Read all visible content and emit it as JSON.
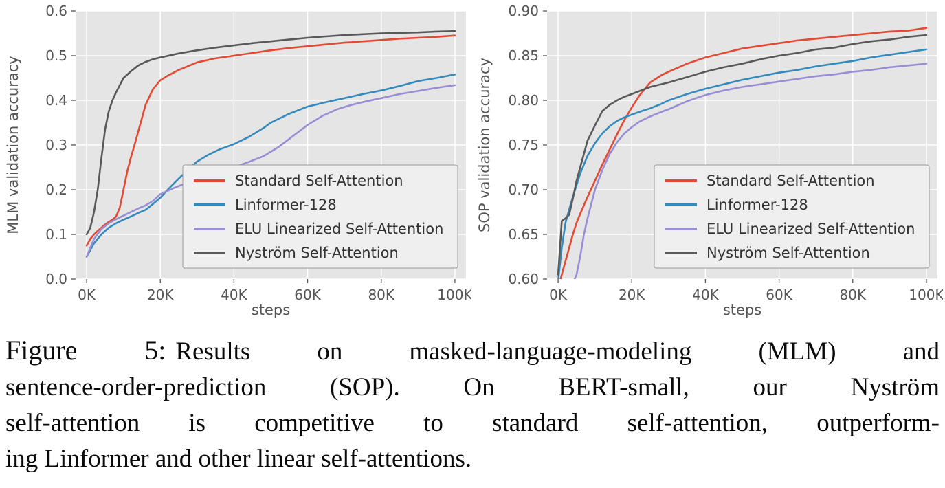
{
  "caption": {
    "label": "Figure 5:",
    "lines": [
      "Results on masked-language-modeling (MLM) and",
      "sentence-order-prediction (SOP). On BERT-small, our Nyström",
      "self-attention is competitive to standard self-attention, outperform-",
      "ing Linformer and other linear self-attentions."
    ]
  },
  "styles": {
    "plot_bg": "#e5e5e5",
    "grid_color": "#ffffff",
    "tick_color": "#555555",
    "legend_bg": "#efefef",
    "legend_border": "#999999"
  },
  "chart_data": [
    {
      "type": "line",
      "title": "",
      "xlabel": "steps",
      "ylabel": "MLM validation accuracy",
      "x_unit": "K",
      "xlim": [
        -3,
        103
      ],
      "ylim": [
        0.0,
        0.6
      ],
      "grid": true,
      "legend_position": "lower right",
      "xticks": {
        "values": [
          0,
          20,
          40,
          60,
          80,
          100
        ],
        "labels": [
          "0K",
          "20K",
          "40K",
          "60K",
          "80K",
          "100K"
        ]
      },
      "yticks": {
        "values": [
          0.0,
          0.1,
          0.2,
          0.3,
          0.4,
          0.5,
          0.6
        ],
        "labels": [
          "0.0",
          "0.1",
          "0.2",
          "0.3",
          "0.4",
          "0.5",
          "0.6"
        ]
      },
      "series": [
        {
          "name": "Standard Self-Attention",
          "color": "#E24A33",
          "x": [
            0,
            1,
            2,
            3,
            4,
            5,
            6,
            7,
            8,
            9,
            10,
            11,
            12,
            13,
            14,
            15,
            16,
            18,
            20,
            22,
            25,
            30,
            35,
            40,
            45,
            50,
            55,
            60,
            65,
            70,
            75,
            80,
            85,
            90,
            95,
            100
          ],
          "y": [
            0.075,
            0.09,
            0.1,
            0.108,
            0.115,
            0.122,
            0.128,
            0.133,
            0.14,
            0.16,
            0.2,
            0.24,
            0.272,
            0.3,
            0.33,
            0.36,
            0.39,
            0.425,
            0.445,
            0.455,
            0.468,
            0.485,
            0.494,
            0.5,
            0.506,
            0.512,
            0.517,
            0.521,
            0.525,
            0.529,
            0.532,
            0.535,
            0.538,
            0.54,
            0.542,
            0.545
          ]
        },
        {
          "name": "Linformer-128",
          "color": "#348ABD",
          "x": [
            0,
            2,
            4,
            6,
            8,
            10,
            12,
            14,
            16,
            18,
            20,
            22,
            25,
            28,
            30,
            33,
            36,
            40,
            44,
            48,
            50,
            55,
            60,
            65,
            70,
            75,
            80,
            85,
            90,
            95,
            100
          ],
          "y": [
            0.05,
            0.08,
            0.1,
            0.115,
            0.125,
            0.133,
            0.14,
            0.148,
            0.155,
            0.168,
            0.182,
            0.2,
            0.225,
            0.248,
            0.263,
            0.278,
            0.29,
            0.302,
            0.318,
            0.338,
            0.35,
            0.37,
            0.386,
            0.396,
            0.405,
            0.414,
            0.422,
            0.432,
            0.443,
            0.45,
            0.458
          ]
        },
        {
          "name": "ELU Linearized Self-Attention",
          "color": "#988ED5",
          "x": [
            0,
            2,
            4,
            6,
            8,
            10,
            12,
            14,
            16,
            18,
            20,
            24,
            28,
            32,
            36,
            40,
            44,
            48,
            52,
            56,
            60,
            64,
            68,
            72,
            76,
            80,
            85,
            90,
            95,
            100
          ],
          "y": [
            0.05,
            0.09,
            0.112,
            0.125,
            0.134,
            0.142,
            0.15,
            0.158,
            0.165,
            0.175,
            0.19,
            0.205,
            0.218,
            0.23,
            0.24,
            0.25,
            0.262,
            0.275,
            0.295,
            0.32,
            0.345,
            0.365,
            0.38,
            0.39,
            0.398,
            0.405,
            0.414,
            0.421,
            0.428,
            0.434
          ]
        },
        {
          "name": "Nyström Self-Attention",
          "color": "#595959",
          "x": [
            0,
            1,
            2,
            3,
            4,
            5,
            6,
            7,
            8,
            10,
            12,
            14,
            16,
            18,
            20,
            25,
            30,
            35,
            40,
            45,
            50,
            55,
            60,
            65,
            70,
            75,
            80,
            85,
            90,
            95,
            100
          ],
          "y": [
            0.1,
            0.115,
            0.15,
            0.2,
            0.27,
            0.335,
            0.375,
            0.4,
            0.418,
            0.45,
            0.465,
            0.478,
            0.486,
            0.492,
            0.496,
            0.505,
            0.512,
            0.518,
            0.523,
            0.528,
            0.532,
            0.536,
            0.54,
            0.543,
            0.546,
            0.548,
            0.55,
            0.551,
            0.552,
            0.554,
            0.555
          ]
        }
      ]
    },
    {
      "type": "line",
      "title": "",
      "xlabel": "steps",
      "ylabel": "SOP validation accuracy",
      "x_unit": "K",
      "xlim": [
        -3,
        103
      ],
      "ylim": [
        0.6,
        0.9
      ],
      "grid": true,
      "legend_position": "lower right",
      "xticks": {
        "values": [
          0,
          20,
          40,
          60,
          80,
          100
        ],
        "labels": [
          "0K",
          "20K",
          "40K",
          "60K",
          "80K",
          "100K"
        ]
      },
      "yticks": {
        "values": [
          0.6,
          0.65,
          0.7,
          0.75,
          0.8,
          0.85,
          0.9
        ],
        "labels": [
          "0.60",
          "0.65",
          "0.70",
          "0.75",
          "0.80",
          "0.85",
          "0.90"
        ]
      },
      "series": [
        {
          "name": "Standard Self-Attention",
          "color": "#E24A33",
          "x": [
            0,
            1,
            2,
            3,
            4,
            5,
            6,
            8,
            10,
            12,
            14,
            16,
            18,
            20,
            22,
            25,
            28,
            30,
            35,
            40,
            45,
            50,
            55,
            60,
            65,
            70,
            75,
            80,
            85,
            90,
            95,
            100
          ],
          "y": [
            0.59,
            0.605,
            0.62,
            0.635,
            0.65,
            0.663,
            0.673,
            0.692,
            0.71,
            0.728,
            0.745,
            0.762,
            0.778,
            0.792,
            0.805,
            0.82,
            0.828,
            0.832,
            0.841,
            0.848,
            0.853,
            0.858,
            0.861,
            0.864,
            0.867,
            0.869,
            0.871,
            0.873,
            0.875,
            0.877,
            0.878,
            0.881
          ]
        },
        {
          "name": "Linformer-128",
          "color": "#348ABD",
          "x": [
            0,
            1,
            2,
            3,
            4,
            5,
            6,
            8,
            10,
            12,
            14,
            16,
            18,
            20,
            22,
            25,
            28,
            30,
            35,
            40,
            45,
            50,
            55,
            60,
            65,
            70,
            75,
            80,
            85,
            90,
            95,
            100
          ],
          "y": [
            0.598,
            0.635,
            0.663,
            0.678,
            0.692,
            0.705,
            0.718,
            0.738,
            0.752,
            0.763,
            0.771,
            0.777,
            0.781,
            0.784,
            0.787,
            0.791,
            0.796,
            0.8,
            0.807,
            0.813,
            0.818,
            0.823,
            0.827,
            0.831,
            0.834,
            0.838,
            0.841,
            0.844,
            0.848,
            0.851,
            0.854,
            0.857
          ]
        },
        {
          "name": "ELU Linearized Self-Attention",
          "color": "#988ED5",
          "x": [
            0,
            2,
            4,
            5,
            6,
            7,
            8,
            10,
            12,
            14,
            16,
            18,
            20,
            22,
            25,
            28,
            30,
            35,
            40,
            45,
            50,
            55,
            60,
            65,
            70,
            75,
            80,
            85,
            90,
            95,
            100
          ],
          "y": [
            0.575,
            0.585,
            0.595,
            0.605,
            0.625,
            0.65,
            0.668,
            0.7,
            0.722,
            0.74,
            0.753,
            0.763,
            0.77,
            0.776,
            0.782,
            0.787,
            0.79,
            0.799,
            0.806,
            0.811,
            0.815,
            0.818,
            0.821,
            0.824,
            0.827,
            0.829,
            0.832,
            0.834,
            0.837,
            0.839,
            0.841
          ]
        },
        {
          "name": "Nyström Self-Attention",
          "color": "#595959",
          "x": [
            0,
            1,
            2,
            3,
            4,
            5,
            6,
            8,
            10,
            12,
            14,
            16,
            18,
            20,
            25,
            30,
            35,
            40,
            45,
            50,
            55,
            60,
            65,
            70,
            75,
            80,
            85,
            90,
            95,
            100
          ],
          "y": [
            0.605,
            0.665,
            0.668,
            0.672,
            0.69,
            0.71,
            0.725,
            0.755,
            0.772,
            0.788,
            0.795,
            0.8,
            0.804,
            0.807,
            0.815,
            0.82,
            0.826,
            0.832,
            0.837,
            0.841,
            0.846,
            0.85,
            0.853,
            0.857,
            0.859,
            0.863,
            0.866,
            0.868,
            0.871,
            0.873
          ]
        }
      ]
    }
  ]
}
